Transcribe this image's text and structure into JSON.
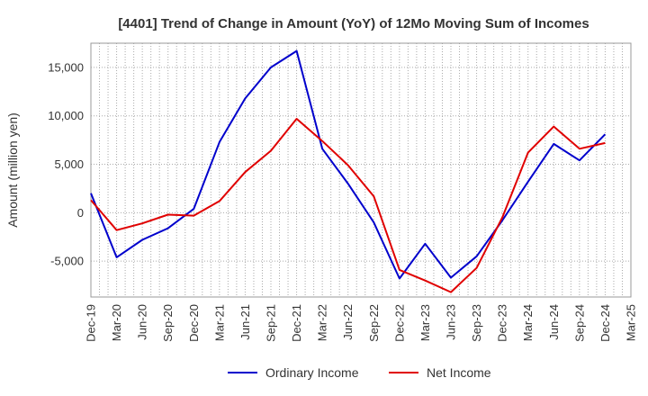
{
  "chart_data": {
    "type": "line",
    "title": "[4401]  Trend of Change in Amount (YoY) of 12Mo Moving Sum of Incomes",
    "xlabel": "",
    "ylabel": "Amount (million yen)",
    "ylim": [
      -8700,
      17500
    ],
    "yticks": [
      -5000,
      0,
      5000,
      10000,
      15000
    ],
    "ytick_labels": [
      "-5,000",
      "0",
      "5,000",
      "10,000",
      "15,000"
    ],
    "categories": [
      "Dec-19",
      "Mar-20",
      "Jun-20",
      "Sep-20",
      "Dec-20",
      "Mar-21",
      "Jun-21",
      "Sep-21",
      "Dec-21",
      "Mar-22",
      "Jun-22",
      "Sep-22",
      "Dec-22",
      "Mar-23",
      "Jun-23",
      "Sep-23",
      "Dec-23",
      "Mar-24",
      "Jun-24",
      "Sep-24",
      "Dec-24",
      "Mar-25"
    ],
    "grid": true,
    "legend_position": "bottom",
    "series": [
      {
        "name": "Ordinary Income",
        "color": "#0000cc",
        "values": [
          2000,
          -4600,
          -2800,
          -1600,
          400,
          7300,
          11800,
          15000,
          16700,
          6600,
          3000,
          -1000,
          -6800,
          -3200,
          -6700,
          -4500,
          -800,
          3200,
          7100,
          5400,
          8100,
          null
        ]
      },
      {
        "name": "Net Income",
        "color": "#e00000",
        "values": [
          1300,
          -1800,
          -1100,
          -200,
          -300,
          1200,
          4200,
          6400,
          9700,
          7400,
          4900,
          1700,
          -5900,
          -7000,
          -8200,
          -5700,
          -500,
          6200,
          8900,
          6600,
          7200,
          null
        ]
      }
    ]
  }
}
